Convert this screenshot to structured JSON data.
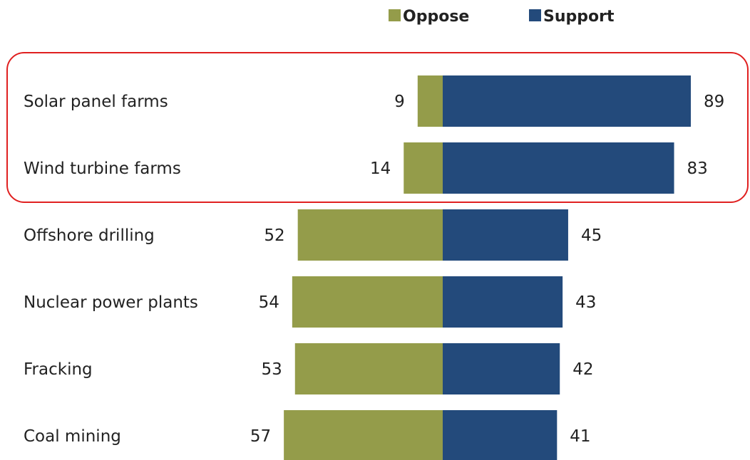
{
  "chart_data": {
    "type": "bar",
    "orientation": "horizontal-diverging",
    "categories": [
      "Solar panel farms",
      "Wind turbine farms",
      "Offshore drilling",
      "Nuclear power plants",
      "Fracking",
      "Coal mining"
    ],
    "series": [
      {
        "name": "Oppose",
        "values": [
          9,
          14,
          52,
          54,
          53,
          57
        ],
        "color": "#949c4a"
      },
      {
        "name": "Support",
        "values": [
          89,
          83,
          45,
          43,
          42,
          41
        ],
        "color": "#234a7b"
      }
    ],
    "legend": {
      "placement": "top-right",
      "entries": [
        "Oppose",
        "Support"
      ]
    },
    "highlight": {
      "categories": [
        "Solar panel farms",
        "Wind turbine farms"
      ],
      "color": "#e02020"
    },
    "grid": false
  }
}
